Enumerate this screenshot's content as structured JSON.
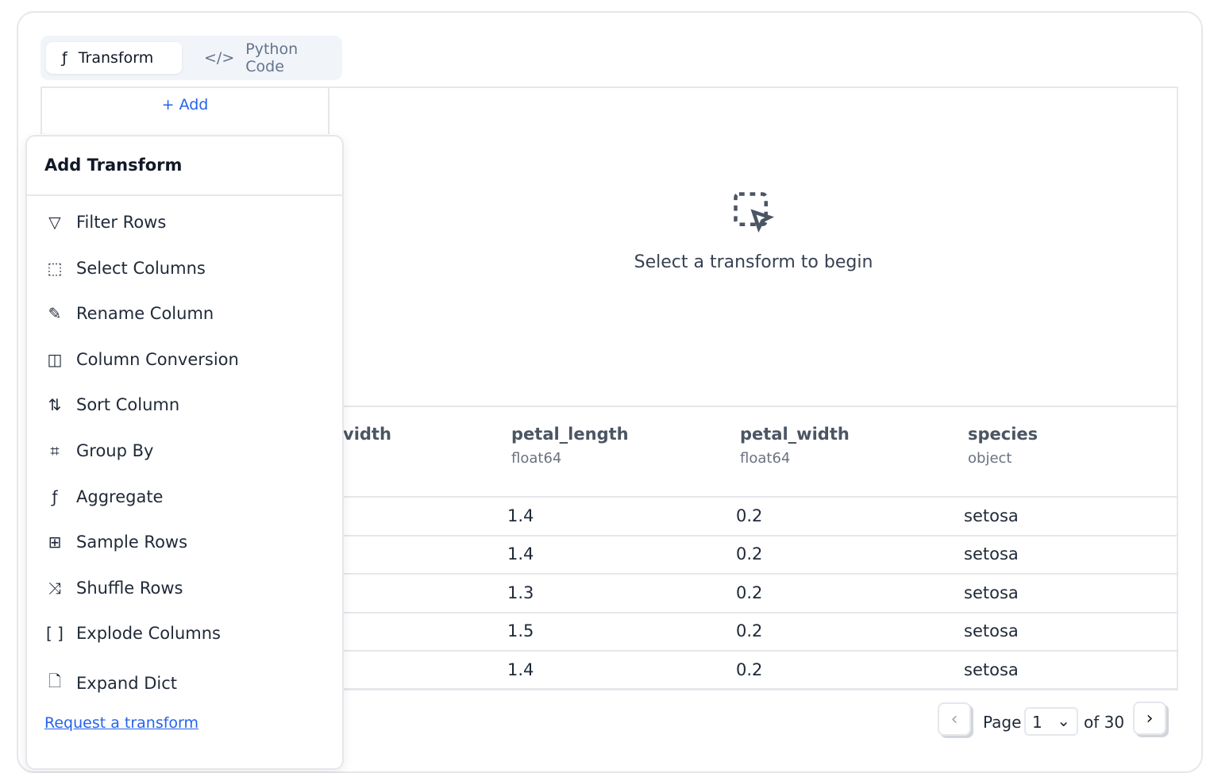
{
  "tabs": [
    {
      "label": "Transform",
      "icon": "function-icon",
      "active": true
    },
    {
      "label": "Python Code",
      "icon": "code-icon",
      "active": false
    }
  ],
  "add_label": "Add",
  "empty_state": {
    "icon": "dashed-select-cursor-icon",
    "message": "Select a transform to begin"
  },
  "table": {
    "columns": [
      {
        "name": "vidth",
        "type": ""
      },
      {
        "name": "petal_length",
        "type": "float64"
      },
      {
        "name": "petal_width",
        "type": "float64"
      },
      {
        "name": "species",
        "type": "object"
      }
    ],
    "rows": [
      [
        "1.4",
        "0.2",
        "setosa"
      ],
      [
        "1.4",
        "0.2",
        "setosa"
      ],
      [
        "1.3",
        "0.2",
        "setosa"
      ],
      [
        "1.5",
        "0.2",
        "setosa"
      ],
      [
        "1.4",
        "0.2",
        "setosa"
      ]
    ]
  },
  "popup": {
    "title": "Add Transform",
    "items": [
      {
        "label": "Filter Rows",
        "icon": "filter-icon"
      },
      {
        "label": "Select Columns",
        "icon": "select-columns-icon"
      },
      {
        "label": "Rename Column",
        "icon": "pencil-icon"
      },
      {
        "label": "Column Conversion",
        "icon": "columns-icon"
      },
      {
        "label": "Sort Column",
        "icon": "sort-icon"
      },
      {
        "label": "Group By",
        "icon": "group-icon"
      },
      {
        "label": "Aggregate",
        "icon": "function-icon"
      },
      {
        "label": "Sample Rows",
        "icon": "sample-icon"
      },
      {
        "label": "Shuffle Rows",
        "icon": "shuffle-icon"
      },
      {
        "label": "Explode Columns",
        "icon": "brackets-icon"
      },
      {
        "label": "Expand Dict",
        "icon": "file-braces-icon"
      }
    ],
    "request_link": "Request a transform"
  },
  "pager": {
    "page_label": "Page",
    "page": "1",
    "of_label": "of 30"
  }
}
